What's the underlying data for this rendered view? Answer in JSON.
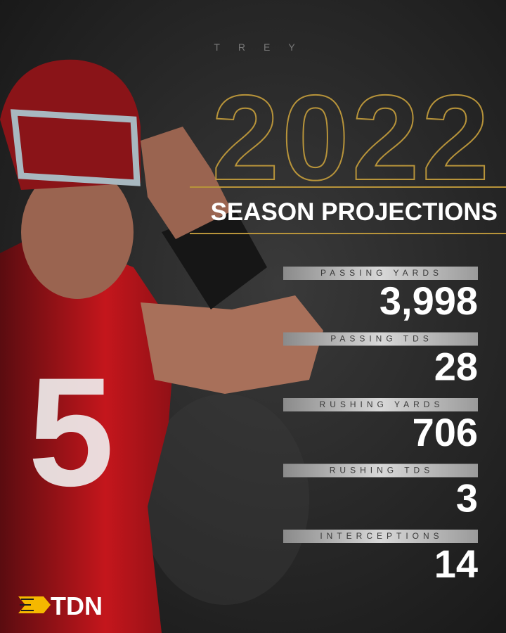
{
  "header": {
    "first_name": "TREY",
    "year": "2022",
    "subtitle": "SEASON PROJECTIONS"
  },
  "stats": [
    {
      "label": "PASSING YARDS",
      "value": "3,998"
    },
    {
      "label": "PASSING TDS",
      "value": "28"
    },
    {
      "label": "RUSHING YARDS",
      "value": "706"
    },
    {
      "label": "RUSHING TDS",
      "value": "3"
    },
    {
      "label": "INTERCEPTIONS",
      "value": "14"
    }
  ],
  "logo": {
    "text": "TDN"
  }
}
